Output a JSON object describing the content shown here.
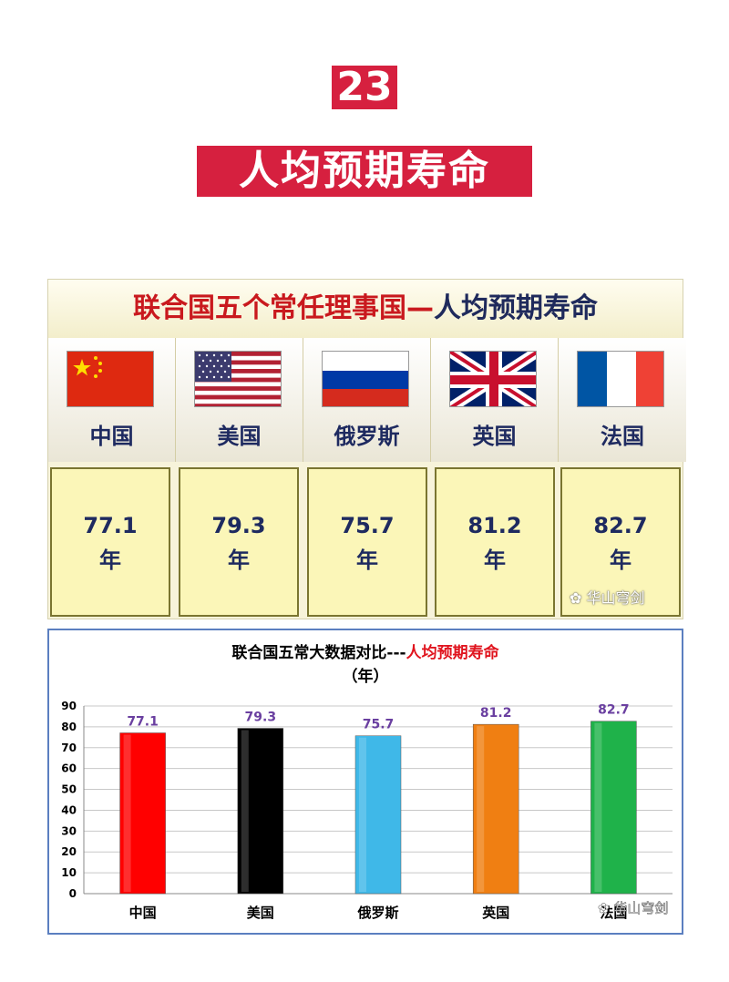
{
  "header": {
    "number": "23",
    "title": "人均预期寿命"
  },
  "table": {
    "title_prefix": "联合国五个常任理事国—",
    "title_suffix": "人均预期寿命",
    "countries": [
      {
        "name": "中国",
        "value": "77.1",
        "unit": "年",
        "flag": "cn-flag-icon"
      },
      {
        "name": "美国",
        "value": "79.3",
        "unit": "年",
        "flag": "us-flag-icon"
      },
      {
        "name": "俄罗斯",
        "value": "75.7",
        "unit": "年",
        "flag": "ru-flag-icon"
      },
      {
        "name": "英国",
        "value": "81.2",
        "unit": "年",
        "flag": "uk-flag-icon"
      },
      {
        "name": "法国",
        "value": "82.7",
        "unit": "年",
        "flag": "fr-flag-icon"
      }
    ],
    "watermark": "华山穹剑"
  },
  "chart_data": {
    "type": "bar",
    "title_black": "联合国五常大数据对比---",
    "title_red": "人均预期寿命",
    "subtitle": "（年）",
    "categories": [
      "中国",
      "美国",
      "俄罗斯",
      "英国",
      "法国"
    ],
    "values": [
      77.1,
      79.3,
      75.7,
      81.2,
      82.7
    ],
    "data_labels": [
      "77.1",
      "79.3",
      "75.7",
      "81.2",
      "82.7"
    ],
    "colors": [
      "#ff0000",
      "#000000",
      "#3fb8e8",
      "#f07f12",
      "#1fb24a"
    ],
    "label_color": "#6a3fa0",
    "ylim": [
      0,
      90
    ],
    "yticks": [
      "0",
      "10",
      "20",
      "30",
      "40",
      "50",
      "60",
      "70",
      "80",
      "90"
    ],
    "grid": true,
    "watermark": "华山穹剑"
  }
}
